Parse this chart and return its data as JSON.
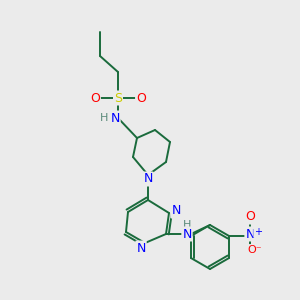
{
  "bg_color": "#ebebeb",
  "atom_colors": {
    "C": "#1a6b3c",
    "N": "#0000ff",
    "O": "#ff0000",
    "S": "#cccc00",
    "H": "#5a8a7a"
  },
  "bond_color": "#1a6b3c",
  "figsize": [
    3.0,
    3.0
  ],
  "dpi": 100
}
